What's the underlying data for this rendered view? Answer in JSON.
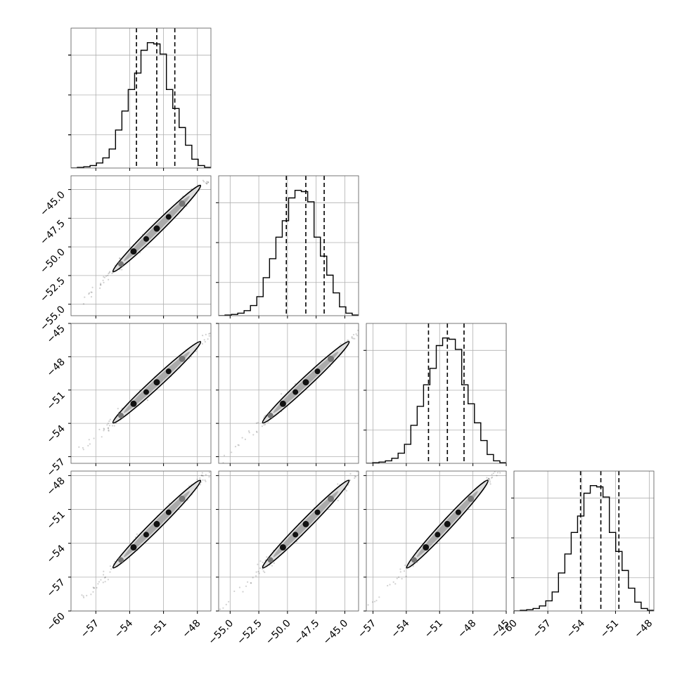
{
  "chart_data": {
    "type": "corner",
    "grid": true,
    "colors": {
      "line": "#000000",
      "grid": "#b0b0b0",
      "scatter": "#000000",
      "contour_fill": "#888888"
    },
    "params": [
      {
        "xlim": [
          -59.2,
          -46.8
        ],
        "histogram": [
          0,
          0.005,
          0.01,
          0.02,
          0.04,
          0.08,
          0.15,
          0.3,
          0.45,
          0.62,
          0.75,
          0.93,
          0.99,
          0.98,
          0.9,
          0.62,
          0.47,
          0.32,
          0.18,
          0.07,
          0.02,
          0.005
        ],
        "quantiles": [
          -53.4,
          -51.6,
          -50.0
        ],
        "ticks": [
          -57,
          -54,
          -51,
          -48
        ],
        "tick_labels": [
          "−57",
          "−54",
          "−51",
          "−48"
        ]
      },
      {
        "xlim": [
          -56.0,
          -43.8
        ],
        "histogram": [
          0,
          0.005,
          0.01,
          0.02,
          0.04,
          0.08,
          0.15,
          0.3,
          0.45,
          0.62,
          0.75,
          0.93,
          0.99,
          0.98,
          0.9,
          0.62,
          0.47,
          0.32,
          0.18,
          0.07,
          0.02,
          0.005
        ],
        "quantiles": [
          -50.1,
          -48.4,
          -46.8
        ],
        "ticks": [
          -55.0,
          -52.5,
          -50.0,
          -47.5,
          -45.0
        ],
        "tick_labels": [
          "−55.0",
          "−52.5",
          "−50.0",
          "−47.5",
          "−45.0"
        ]
      },
      {
        "xlim": [
          -57.6,
          -45.0
        ],
        "histogram": [
          0,
          0.005,
          0.01,
          0.02,
          0.04,
          0.08,
          0.15,
          0.3,
          0.45,
          0.62,
          0.75,
          0.93,
          0.99,
          0.98,
          0.9,
          0.62,
          0.47,
          0.32,
          0.18,
          0.07,
          0.02,
          0.005
        ],
        "quantiles": [
          -52.0,
          -50.3,
          -48.8
        ],
        "ticks": [
          -57,
          -54,
          -51,
          -48,
          -45
        ],
        "tick_labels": [
          "−57",
          "−54",
          "−51",
          "−48",
          "−45"
        ]
      },
      {
        "xlim": [
          -60.0,
          -47.6
        ],
        "histogram": [
          0,
          0.005,
          0.01,
          0.02,
          0.04,
          0.08,
          0.15,
          0.3,
          0.45,
          0.62,
          0.75,
          0.93,
          0.99,
          0.98,
          0.9,
          0.62,
          0.47,
          0.32,
          0.18,
          0.07,
          0.02,
          0.005
        ],
        "quantiles": [
          -54.1,
          -52.3,
          -50.7
        ],
        "ticks": [
          -60,
          -57,
          -54,
          -51,
          -48
        ],
        "tick_labels": [
          "−60",
          "−57",
          "−54",
          "−51",
          "−48"
        ]
      }
    ]
  }
}
